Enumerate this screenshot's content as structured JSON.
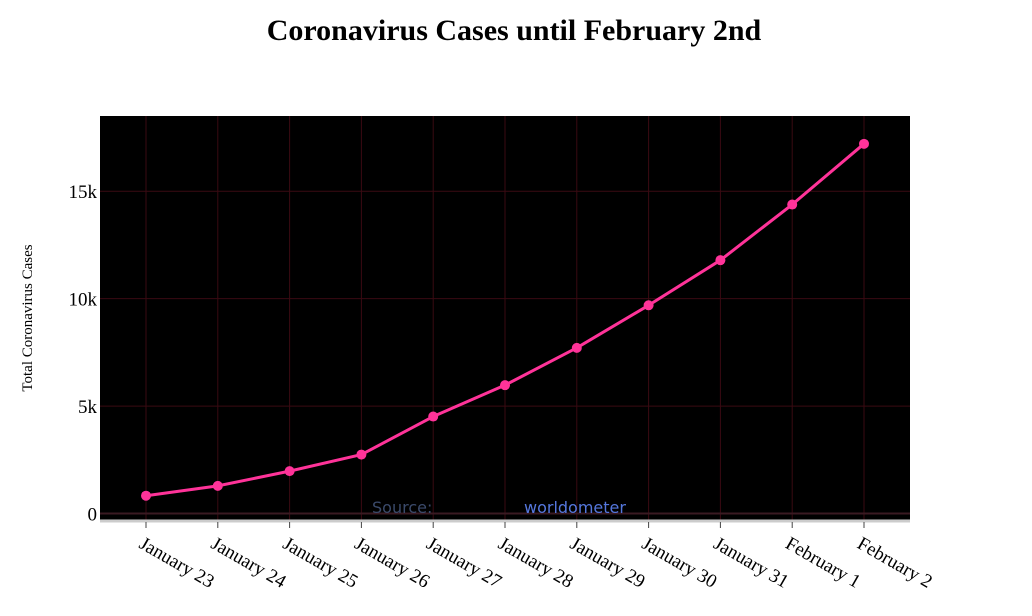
{
  "chart_data": {
    "type": "line",
    "title": "Coronavirus Cases until February 2nd",
    "xlabel": "",
    "ylabel": "Total Coronavirus Cases",
    "categories": [
      "January 23",
      "January 24",
      "January 25",
      "January 26",
      "January 27",
      "January 28",
      "January 29",
      "January 30",
      "January 31",
      "February 1",
      "February 2"
    ],
    "series": [
      {
        "values": [
          830,
          1287,
          1975,
          2744,
          4515,
          5974,
          7711,
          9692,
          11791,
          14380,
          17205
        ]
      }
    ],
    "ylim": [
      -300,
      18500
    ],
    "yticks": [
      {
        "value": 0,
        "label": "0"
      },
      {
        "value": 5000,
        "label": "5k"
      },
      {
        "value": 10000,
        "label": "10k"
      },
      {
        "value": 15000,
        "label": "15k"
      }
    ],
    "grid": true,
    "legend": "none",
    "annotation": {
      "prefix": "Source:",
      "link": "worldometer"
    }
  },
  "colors": {
    "plot_background": "#000000",
    "line": "#ff3399",
    "grid": "#3a0a12",
    "axis_line": "#cccccc",
    "source_prefix": "#3b4a6b",
    "source_link": "#5577dd",
    "text": "#000000"
  }
}
